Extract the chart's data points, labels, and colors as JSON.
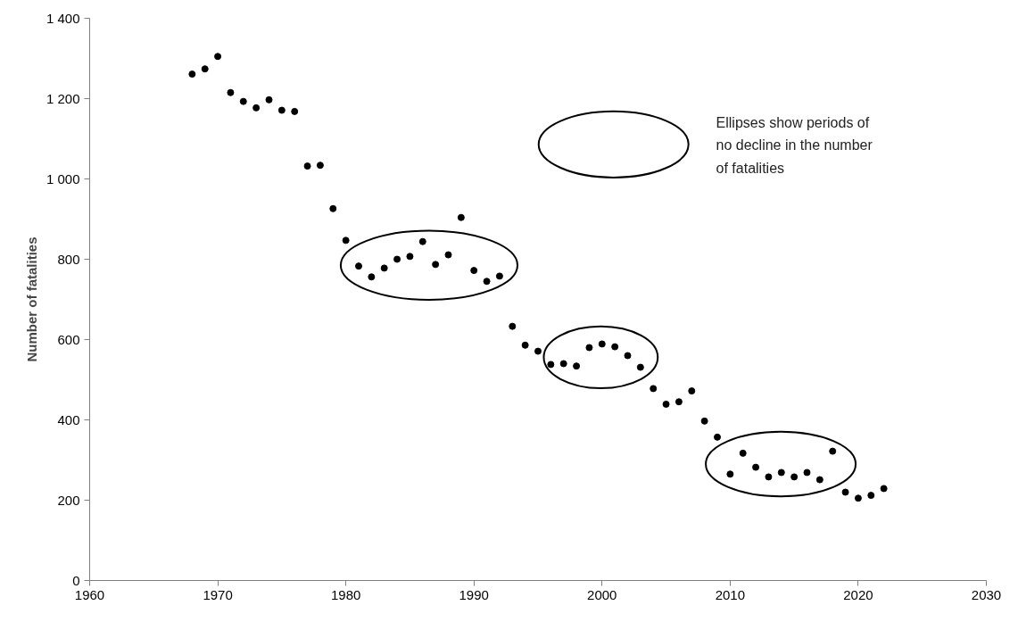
{
  "chart_data": {
    "type": "scatter",
    "ylabel": "Number of fatalities",
    "marker": "circle",
    "grid": false,
    "xlim": [
      1960,
      2030
    ],
    "xticks": [
      1960,
      1970,
      1980,
      1990,
      2000,
      2010,
      2020,
      2030
    ],
    "ylim": [
      0,
      1400
    ],
    "yticks": [
      0,
      200,
      400,
      600,
      800,
      {
        "value": 1000,
        "label": "1 000"
      },
      {
        "value": 1200,
        "label": "1 200"
      },
      {
        "value": 1400,
        "label": "1 400"
      }
    ],
    "x": [
      1968,
      1969,
      1970,
      1971,
      1972,
      1973,
      1974,
      1975,
      1976,
      1977,
      1978,
      1979,
      1980,
      1981,
      1982,
      1983,
      1984,
      1985,
      1986,
      1987,
      1988,
      1989,
      1990,
      1991,
      1992,
      1993,
      1994,
      1995,
      1996,
      1997,
      1998,
      1999,
      2000,
      2001,
      2002,
      2003,
      2004,
      2005,
      2006,
      2007,
      2008,
      2009,
      2010,
      2011,
      2012,
      2013,
      2014,
      2015,
      2016,
      2017,
      2018,
      2019,
      2020,
      2021,
      2022
    ],
    "series": [
      {
        "color": "#000000",
        "values": [
          1261,
          1274,
          1305,
          1215,
          1193,
          1177,
          1197,
          1171,
          1168,
          1032,
          1034,
          926,
          847,
          783,
          756,
          778,
          800,
          807,
          844,
          787,
          811,
          904,
          772,
          745,
          758,
          633,
          586,
          571,
          538,
          540,
          534,
          580,
          589,
          582,
          560,
          531,
          478,
          439,
          445,
          472,
          397,
          357,
          265,
          317,
          282,
          258,
          269,
          258,
          269,
          251,
          322,
          220,
          205,
          212,
          229
        ]
      }
    ],
    "annotations": [
      "Ellipses show periods of no decline in the number of fatalities"
    ]
  }
}
